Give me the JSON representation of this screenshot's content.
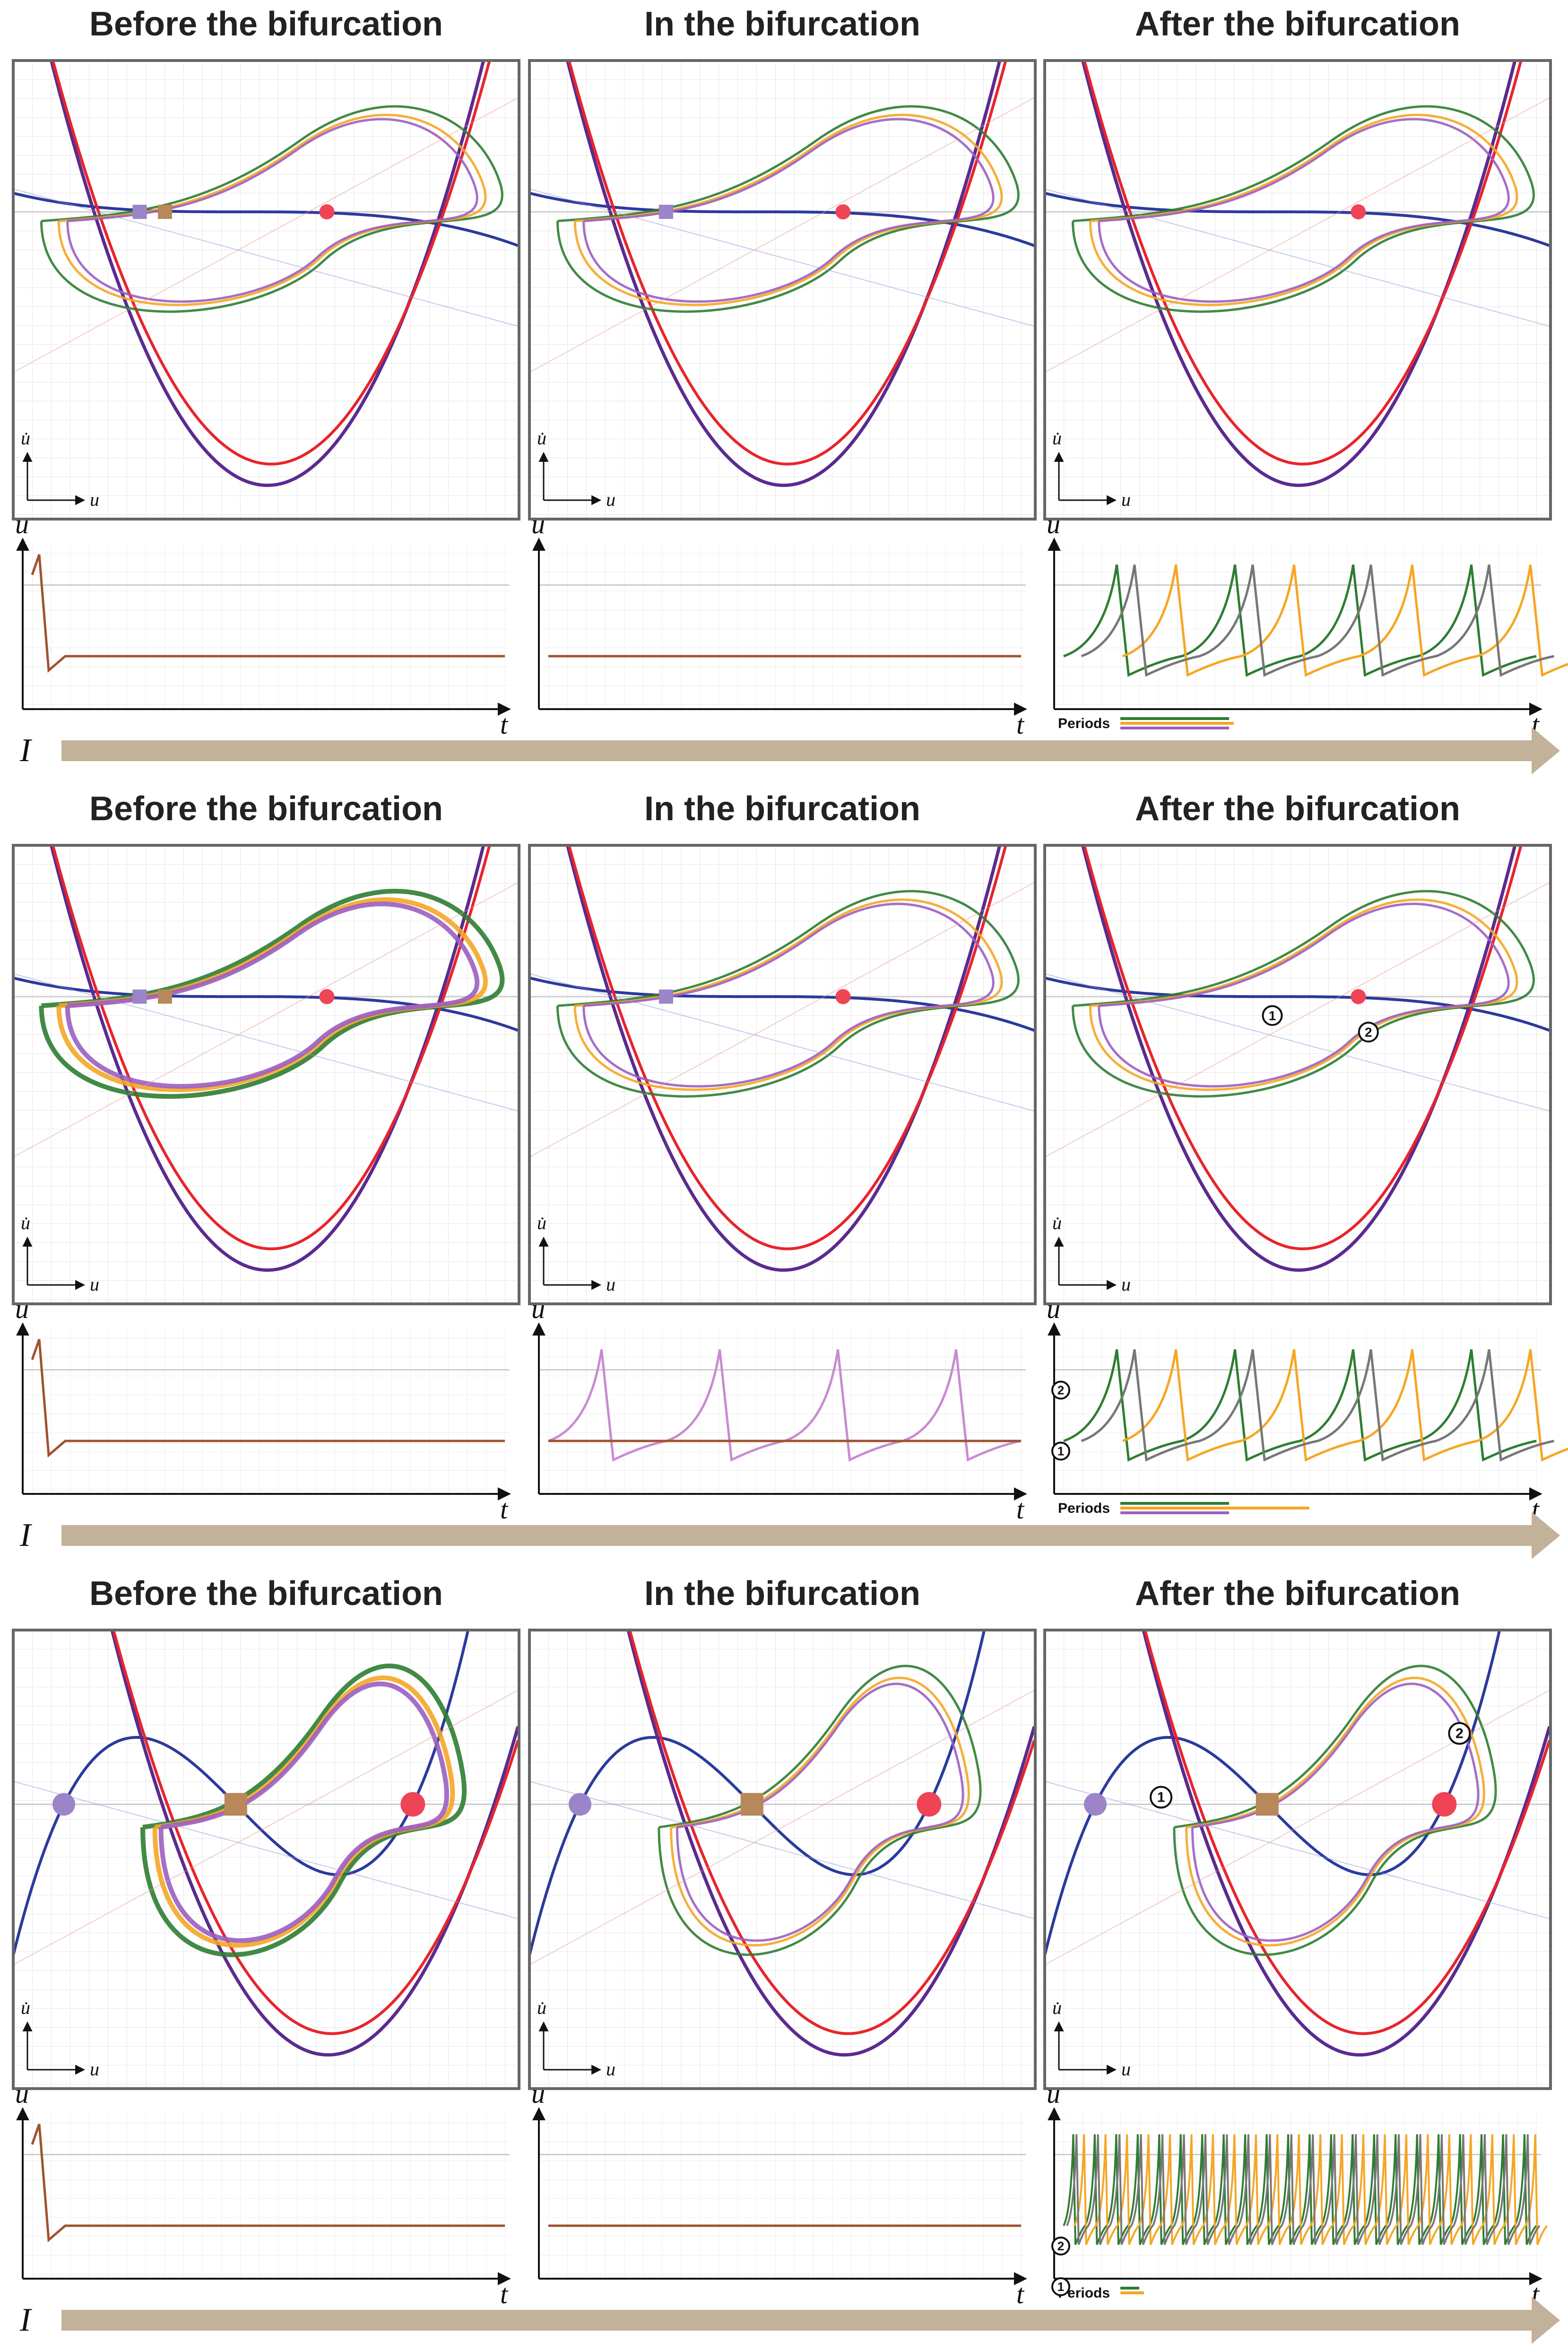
{
  "colors": {
    "frame": "#666666",
    "grid": "#e3e3e3",
    "grid_major": "#cfcfcf",
    "nullcline_blue": "#2b3a9c",
    "nullcline_red": "#e8242b",
    "nullcline_purple": "#5a2b8f",
    "traj_green": "#2e7d32",
    "traj_orange": "#f5a623",
    "traj_purple": "#9c5fc0",
    "traj_pink": "#c88bd1",
    "traj_brown": "#a0522d",
    "eq_purple": "#9b84c8",
    "eq_brown": "#b8875a",
    "eq_red": "#ee4455",
    "timeseries": "#a0522d",
    "arrow_fill": "#c2b29a"
  },
  "axes": {
    "phase_y": "u̇",
    "phase_x": "u",
    "time_y": "u",
    "time_x": "t",
    "parameter": "I"
  },
  "rows": [
    {
      "panels": [
        {
          "title": "Before the bifurcation"
        },
        {
          "title": "In the bifurcation"
        },
        {
          "title": "After the bifurcation"
        }
      ],
      "periods_label": "Periods"
    },
    {
      "panels": [
        {
          "title": "Before the bifurcation"
        },
        {
          "title": "In the bifurcation"
        },
        {
          "title": "After the bifurcation"
        }
      ],
      "periods_label": "Periods",
      "markers": [
        "1",
        "2"
      ]
    },
    {
      "panels": [
        {
          "title": "Before the bifurcation"
        },
        {
          "title": "In the bifurcation"
        },
        {
          "title": "After the bifurcation"
        }
      ],
      "periods_label": "Periods",
      "markers": [
        "1",
        "2"
      ]
    }
  ]
}
